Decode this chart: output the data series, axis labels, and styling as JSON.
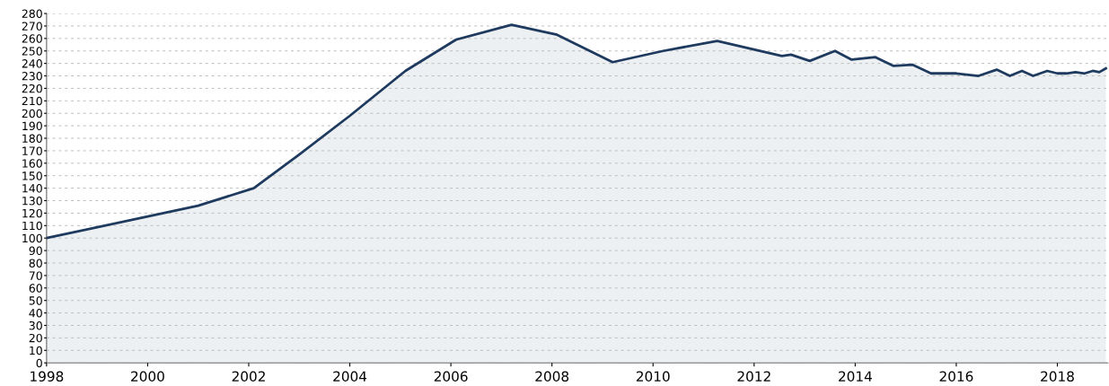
{
  "chart_data": {
    "type": "area",
    "x": [
      1998,
      2001,
      2002.1,
      2003,
      2004,
      2005.1,
      2006.1,
      2007.2,
      2008.1,
      2009.2,
      2010.2,
      2011.27,
      2012.55,
      2012.73,
      2013.1,
      2013.6,
      2013.93,
      2014.4,
      2014.76,
      2015.13,
      2015.5,
      2016,
      2016.44,
      2016.8,
      2017.06,
      2017.3,
      2017.52,
      2017.8,
      2018,
      2018.18,
      2018.36,
      2018.54,
      2018.7,
      2018.83,
      2018.96
    ],
    "series": [
      {
        "color": "#1f3a5f",
        "values": [
          100,
          126,
          140,
          167,
          198,
          234,
          259,
          271,
          263,
          241,
          250,
          258,
          246,
          247,
          242,
          250,
          243,
          245,
          238,
          239,
          232,
          232,
          230,
          235,
          230,
          234,
          230,
          234,
          232,
          232,
          233,
          232,
          234,
          233,
          236
        ]
      }
    ],
    "xlim": [
      1998,
      2019
    ],
    "xticks": [
      1998,
      2000,
      2002,
      2004,
      2006,
      2008,
      2010,
      2012,
      2014,
      2016,
      2018
    ],
    "ylim": [
      0,
      280
    ],
    "yticks": [
      0,
      10,
      20,
      30,
      40,
      50,
      60,
      70,
      80,
      90,
      100,
      110,
      120,
      130,
      140,
      150,
      160,
      170,
      180,
      190,
      200,
      210,
      220,
      230,
      240,
      250,
      260,
      270,
      280
    ],
    "grid": "y",
    "line_style": "solid",
    "marker": "none",
    "legend": false
  }
}
